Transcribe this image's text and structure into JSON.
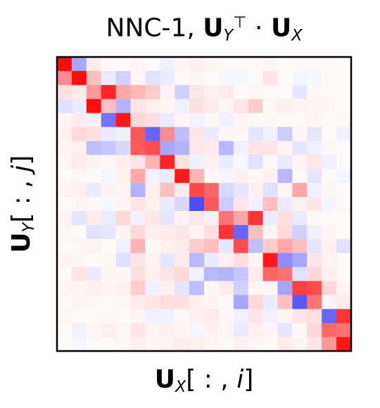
{
  "chart_data": {
    "type": "heatmap",
    "title": {
      "prefix": "NNC-1, ",
      "left_matrix": "U",
      "left_subscript": "Y",
      "left_superscript": "⊤",
      "operator": " · ",
      "right_matrix": "U",
      "right_subscript": "X"
    },
    "xlabel": {
      "matrix": "U",
      "subscript": "X",
      "index": "[ : , ",
      "var": "i",
      "close": "]"
    },
    "ylabel": {
      "matrix": "U",
      "subscript": "Y",
      "index": "[ : , ",
      "var": "j",
      "close": "]"
    },
    "colormap": "bwr",
    "color_low": "#0000ff",
    "color_mid": "#ffffff",
    "color_high": "#ff0000",
    "value_range": [
      -1,
      1
    ],
    "grid": false,
    "values": [
      [
        0.95,
        -0.35,
        0.08,
        0.02,
        0.02,
        0.04,
        0.02,
        -0.06,
        0.04,
        0.06,
        0.03,
        0.02,
        0.02,
        0.02,
        0.04,
        0.02,
        0.02,
        0.02,
        0.02,
        0.02
      ],
      [
        0.45,
        0.95,
        0.25,
        -0.08,
        -0.18,
        0.03,
        -0.12,
        -0.08,
        0.02,
        0.04,
        0.02,
        -0.03,
        -0.03,
        0.02,
        0.1,
        0.02,
        -0.04,
        -0.03,
        0.02,
        0.02
      ],
      [
        0.12,
        0.08,
        0.4,
        0.85,
        0.35,
        0.28,
        0.2,
        0.05,
        -0.18,
        0.1,
        0.06,
        0.08,
        0.02,
        0.03,
        0.02,
        0.02,
        -0.1,
        0.03,
        0.02,
        0.02
      ],
      [
        -0.12,
        -0.08,
        0.95,
        0.25,
        -0.3,
        0.1,
        0.06,
        0.04,
        -0.06,
        0.12,
        0.08,
        0.04,
        0.1,
        0.2,
        0.03,
        0.06,
        0.05,
        0.04,
        0.03,
        0.02
      ],
      [
        0.04,
        0.08,
        0.06,
        -0.55,
        0.9,
        0.15,
        0.12,
        -0.08,
        0.04,
        -0.05,
        0.03,
        -0.06,
        0.04,
        0.02,
        0.03,
        0.02,
        0.02,
        0.04,
        0.02,
        0.03
      ],
      [
        0.06,
        0.15,
        0.12,
        -0.08,
        -0.06,
        0.65,
        -0.6,
        0.45,
        -0.25,
        0.1,
        -0.08,
        0.04,
        0.03,
        -0.1,
        -0.06,
        -0.2,
        0.04,
        -0.1,
        0.02,
        -0.06
      ],
      [
        0.04,
        0.06,
        -0.25,
        -0.22,
        -0.15,
        0.65,
        0.7,
        -0.35,
        -0.3,
        0.1,
        0.08,
        -0.28,
        -0.06,
        0.1,
        0.1,
        0.04,
        -0.1,
        -0.06,
        0.03,
        0.02
      ],
      [
        0.03,
        0.08,
        0.05,
        0.03,
        0.06,
        0.1,
        0.3,
        0.85,
        0.12,
        -0.06,
        0.06,
        -0.08,
        -0.03,
        -0.12,
        0.03,
        -0.08,
        0.05,
        0.1,
        -0.06,
        0.02
      ],
      [
        0.02,
        0.03,
        0.02,
        -0.04,
        0.06,
        0.35,
        -0.05,
        -0.08,
        0.9,
        0.3,
        0.03,
        -0.04,
        0.06,
        0.03,
        0.06,
        -0.28,
        0.03,
        -0.1,
        0.02,
        -0.04
      ],
      [
        0.04,
        0.06,
        -0.08,
        0.05,
        0.04,
        -0.3,
        0.06,
        0.25,
        0.08,
        0.72,
        0.6,
        -0.15,
        -0.1,
        0.06,
        -0.12,
        0.04,
        0.35,
        -0.06,
        0.03,
        0.02
      ],
      [
        0.02,
        0.04,
        0.03,
        -0.03,
        0.04,
        0.1,
        0.06,
        -0.08,
        -0.15,
        -0.7,
        0.65,
        -0.2,
        0.1,
        -0.06,
        0.25,
        -0.08,
        0.06,
        0.1,
        -0.04,
        0.03
      ],
      [
        0.04,
        -0.1,
        0.08,
        -0.08,
        0.15,
        -0.05,
        0.1,
        -0.1,
        0.04,
        0.1,
        0.06,
        0.55,
        0.35,
        0.8,
        -0.08,
        0.12,
        -0.08,
        0.03,
        0.02,
        0.02
      ],
      [
        0.03,
        0.02,
        -0.12,
        -0.1,
        0.05,
        0.15,
        0.06,
        0.08,
        0.1,
        0.05,
        0.12,
        0.8,
        -0.6,
        0.25,
        0.05,
        0.15,
        -0.18,
        -0.06,
        0.04,
        0.02
      ],
      [
        0.02,
        0.03,
        0.04,
        0.02,
        -0.06,
        0.3,
        0.02,
        0.06,
        0.08,
        0.2,
        0.25,
        -0.1,
        0.7,
        -0.25,
        0.2,
        0.35,
        0.25,
        -0.1,
        0.06,
        -0.12
      ],
      [
        0.04,
        0.03,
        0.02,
        0.03,
        -0.12,
        0.1,
        0.05,
        -0.1,
        0.08,
        -0.28,
        -0.08,
        0.06,
        0.12,
        0.04,
        0.9,
        -0.45,
        -0.35,
        0.1,
        0.05,
        0.02
      ],
      [
        0.02,
        0.1,
        -0.08,
        0.04,
        0.03,
        0.12,
        0.06,
        0.1,
        0.15,
        -0.06,
        -0.28,
        -0.3,
        -0.22,
        0.08,
        0.6,
        0.55,
        -0.12,
        0.15,
        0.06,
        0.02
      ],
      [
        0.03,
        0.04,
        0.06,
        0.04,
        0.06,
        0.2,
        -0.06,
        0.06,
        -0.1,
        -0.25,
        0.03,
        0.08,
        -0.18,
        0.04,
        0.04,
        -0.35,
        0.75,
        0.7,
        0.15,
        0.05
      ],
      [
        0.02,
        0.04,
        0.03,
        0.02,
        0.03,
        0.08,
        0.1,
        0.12,
        0.12,
        0.06,
        0.04,
        0.02,
        -0.35,
        0.15,
        -0.08,
        0.25,
        -0.65,
        0.55,
        0.04,
        0.08
      ],
      [
        0.03,
        0.02,
        0.02,
        0.03,
        0.02,
        0.04,
        -0.06,
        -0.06,
        0.03,
        0.06,
        0.08,
        0.03,
        -0.06,
        0.1,
        -0.06,
        0.04,
        0.1,
        0.12,
        -0.6,
        0.8
      ],
      [
        0.02,
        -0.06,
        0.03,
        0.06,
        0.03,
        0.1,
        0.04,
        0.06,
        0.04,
        -0.04,
        0.06,
        0.04,
        -0.08,
        0.06,
        0.04,
        -0.1,
        0.03,
        0.15,
        0.6,
        0.55
      ],
      [
        0.02,
        -0.04,
        0.02,
        0.02,
        0.03,
        0.06,
        0.03,
        0.04,
        0.08,
        0.06,
        0.04,
        0.02,
        0.06,
        0.03,
        0.02,
        0.08,
        0.04,
        0.1,
        0.4,
        0.92
      ]
    ]
  }
}
